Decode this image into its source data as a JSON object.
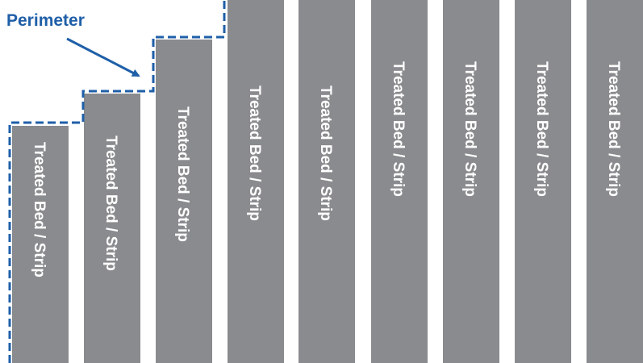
{
  "diagram": {
    "title": "Perimeter",
    "strip_label": "Treated Bed / Strip",
    "strip_count": 9,
    "colors": {
      "strip": "#8a8b8e",
      "strip_text": "#ffffff",
      "perimeter": "#1f5fa8",
      "title": "#1f5fa8",
      "background": "#ffffff"
    }
  }
}
